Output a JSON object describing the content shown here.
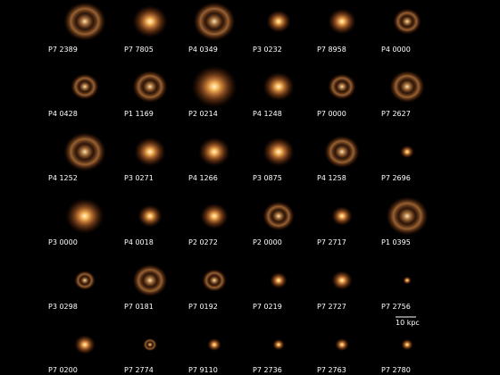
{
  "grid": {
    "rows": [
      [
        "P7 2389",
        "P7 7805",
        "P4 0349",
        "P3 0232",
        "P7 8958",
        "P4 0000"
      ],
      [
        "P4 0428",
        "P1 1169",
        "P2 0214",
        "P4 1248",
        "P7 0000",
        "P7 2627"
      ],
      [
        "P4 1252",
        "P3 0271",
        "P4 1266",
        "P3 0875",
        "P4 1258",
        "P7 2696"
      ],
      [
        "P3 0000",
        "P4 0018",
        "P2 0272",
        "P2 0000",
        "P7 2717",
        "P1 0395"
      ],
      [
        "P3 0298",
        "P7 0181",
        "P7 0192",
        "P7 0219",
        "P7 2727",
        "P7 2756"
      ],
      [
        "P7 0200",
        "P7 2774",
        "P7 9110",
        "P7 2736",
        "P7 2763",
        "P7 2780"
      ]
    ]
  },
  "scale_bar": {
    "label": "10 kpc"
  }
}
